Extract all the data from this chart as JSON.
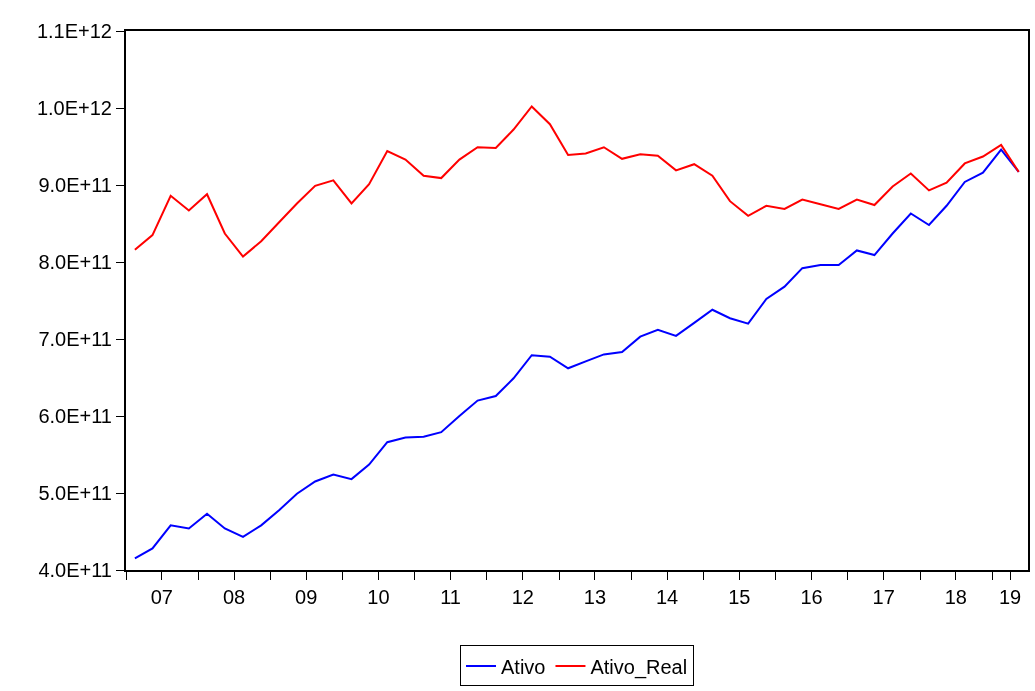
{
  "chart_data": {
    "type": "line",
    "x": [
      "2007-02-15",
      "2007-05-15",
      "2007-08-15",
      "2007-11-15",
      "2008-02-15",
      "2008-05-15",
      "2008-08-15",
      "2008-11-15",
      "2009-02-15",
      "2009-05-15",
      "2009-08-15",
      "2009-11-15",
      "2010-02-15",
      "2010-05-15",
      "2010-08-15",
      "2010-11-15",
      "2011-02-15",
      "2011-05-15",
      "2011-08-15",
      "2011-11-15",
      "2012-02-15",
      "2012-05-15",
      "2012-08-15",
      "2012-11-15",
      "2013-02-15",
      "2013-05-15",
      "2013-08-15",
      "2013-11-15",
      "2014-02-15",
      "2014-05-15",
      "2014-08-15",
      "2014-11-15",
      "2015-02-15",
      "2015-05-15",
      "2015-08-15",
      "2015-11-15",
      "2016-02-15",
      "2016-05-15",
      "2016-08-15",
      "2016-11-15",
      "2017-02-15",
      "2017-05-15",
      "2017-08-15",
      "2017-11-15",
      "2018-02-15",
      "2018-05-15",
      "2018-08-15",
      "2018-11-15",
      "2019-02-15",
      "2019-05-15"
    ],
    "series": [
      {
        "name": "Ativo",
        "color": "#0000ff",
        "values": [
          415000000000.0,
          428000000000.0,
          458000000000.0,
          454000000000.0,
          473000000000.0,
          454000000000.0,
          443000000000.0,
          458000000000.0,
          478000000000.0,
          499000000000.0,
          515000000000.0,
          524000000000.0,
          518000000000.0,
          537000000000.0,
          566000000000.0,
          572000000000.0,
          573000000000.0,
          579000000000.0,
          600000000000.0,
          620000000000.0,
          626000000000.0,
          649000000000.0,
          679000000000.0,
          677000000000.0,
          662000000000.0,
          671000000000.0,
          680000000000.0,
          683000000000.0,
          703000000000.0,
          712000000000.0,
          704000000000.0,
          721000000000.0,
          738000000000.0,
          727000000000.0,
          720000000000.0,
          752000000000.0,
          768000000000.0,
          792000000000.0,
          796000000000.0,
          796000000000.0,
          815000000000.0,
          809000000000.0,
          837000000000.0,
          863000000000.0,
          848000000000.0,
          873000000000.0,
          904000000000.0,
          916000000000.0,
          946000000000.0,
          917000000000.0
        ]
      },
      {
        "name": "Ativo_Real",
        "color": "#ff0000",
        "values": [
          816000000000.0,
          835000000000.0,
          886000000000.0,
          867000000000.0,
          888000000000.0,
          837000000000.0,
          807000000000.0,
          827000000000.0,
          852000000000.0,
          876000000000.0,
          899000000000.0,
          906000000000.0,
          876000000000.0,
          901000000000.0,
          944000000000.0,
          933000000000.0,
          912000000000.0,
          909000000000.0,
          933000000000.0,
          949000000000.0,
          948000000000.0,
          972000000000.0,
          1002000000000.0,
          979000000000.0,
          939000000000.0,
          941000000000.0,
          949000000000.0,
          934000000000.0,
          940000000000.0,
          938000000000.0,
          919000000000.0,
          927000000000.0,
          912000000000.0,
          879000000000.0,
          860000000000.0,
          873000000000.0,
          869000000000.0,
          881000000000.0,
          875000000000.0,
          869000000000.0,
          881000000000.0,
          874000000000.0,
          898000000000.0,
          915000000000.0,
          893000000000.0,
          903000000000.0,
          928000000000.0,
          937000000000.0,
          952000000000.0,
          917000000000.0
        ]
      }
    ],
    "xlim": [
      "2007-01-01",
      "2019-07-01"
    ],
    "xticks": [
      {
        "value": "2007-01-01",
        "label": null
      },
      {
        "value": "2007-07-01",
        "label": "07"
      },
      {
        "value": "2008-01-01",
        "label": null
      },
      {
        "value": "2008-07-01",
        "label": "08"
      },
      {
        "value": "2009-01-01",
        "label": null
      },
      {
        "value": "2009-07-01",
        "label": "09"
      },
      {
        "value": "2010-01-01",
        "label": null
      },
      {
        "value": "2010-07-01",
        "label": "10"
      },
      {
        "value": "2011-01-01",
        "label": null
      },
      {
        "value": "2011-07-01",
        "label": "11"
      },
      {
        "value": "2012-01-01",
        "label": null
      },
      {
        "value": "2012-07-01",
        "label": "12"
      },
      {
        "value": "2013-01-01",
        "label": null
      },
      {
        "value": "2013-07-01",
        "label": "13"
      },
      {
        "value": "2014-01-01",
        "label": null
      },
      {
        "value": "2014-07-01",
        "label": "14"
      },
      {
        "value": "2015-01-01",
        "label": null
      },
      {
        "value": "2015-07-01",
        "label": "15"
      },
      {
        "value": "2016-01-01",
        "label": null
      },
      {
        "value": "2016-07-01",
        "label": "16"
      },
      {
        "value": "2017-01-01",
        "label": null
      },
      {
        "value": "2017-07-01",
        "label": "17"
      },
      {
        "value": "2018-01-01",
        "label": null
      },
      {
        "value": "2018-07-01",
        "label": "18"
      },
      {
        "value": "2019-01-01",
        "label": null
      },
      {
        "value": "2019-04-01",
        "label": "19"
      }
    ],
    "ylim": [
      400000000000.0,
      1100000000000.0
    ],
    "yticks": [
      {
        "value": 400000000000.0,
        "label": "4.0E+11"
      },
      {
        "value": 500000000000.0,
        "label": "5.0E+11"
      },
      {
        "value": 600000000000.0,
        "label": "6.0E+11"
      },
      {
        "value": 700000000000.0,
        "label": "7.0E+11"
      },
      {
        "value": 800000000000.0,
        "label": "8.0E+11"
      },
      {
        "value": 900000000000.0,
        "label": "9.0E+11"
      },
      {
        "value": 1000000000000.0,
        "label": "1.0E+12"
      },
      {
        "value": 1100000000000.0,
        "label": "1.1E+12"
      }
    ],
    "grid": false,
    "legend": "bottom",
    "line_style": "solid",
    "marker": "none"
  }
}
